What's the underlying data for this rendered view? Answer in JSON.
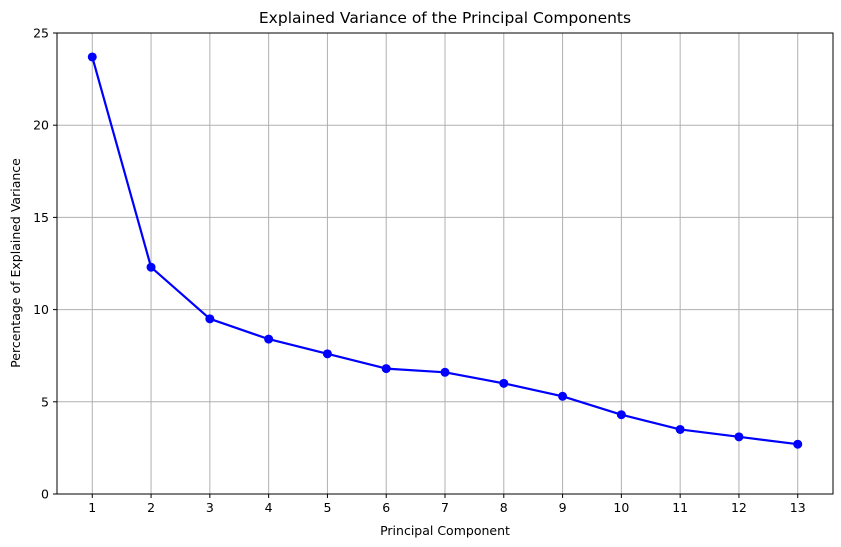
{
  "chart_data": {
    "type": "line",
    "title": "Explained Variance of the Principal Components",
    "xlabel": "Principal Component",
    "ylabel": "Percentage of Explained Variance",
    "x": [
      1,
      2,
      3,
      4,
      5,
      6,
      7,
      8,
      9,
      10,
      11,
      12,
      13
    ],
    "series": [
      {
        "values": [
          23.7,
          12.3,
          9.5,
          8.4,
          7.6,
          6.8,
          6.6,
          6.0,
          5.3,
          4.3,
          3.5,
          3.1,
          2.7
        ],
        "color": "#0000ff",
        "marker": "circle"
      }
    ],
    "xticks": [
      "1",
      "2",
      "3",
      "4",
      "5",
      "6",
      "7",
      "8",
      "9",
      "10",
      "11",
      "12",
      "13"
    ],
    "yticks": [
      "0",
      "5",
      "10",
      "15",
      "20",
      "25"
    ],
    "ytick_values": [
      0,
      5,
      10,
      15,
      20,
      25
    ],
    "xlim": [
      0.4,
      13.6
    ],
    "ylim": [
      0,
      25
    ],
    "grid": true,
    "grid_color": "#b0b0b0"
  }
}
